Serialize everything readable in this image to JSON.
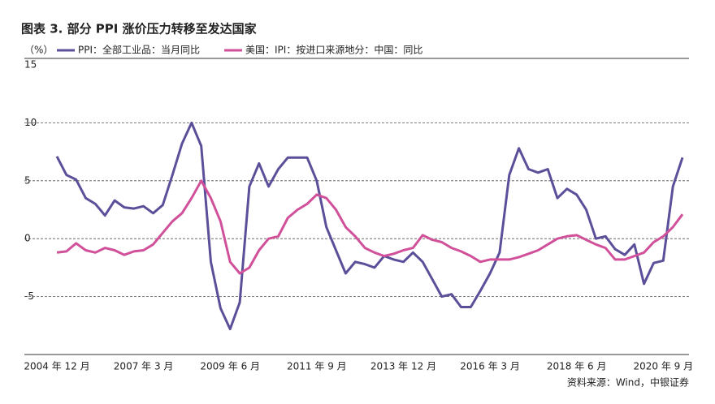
{
  "chart_data": {
    "type": "line",
    "title": "图表 3. 部分 PPI 涨价压力转移至发达国家",
    "y_label": "（%）",
    "source": "资料来源：Wind，中银证券",
    "categories": [
      "2004 年 12 月",
      null,
      null,
      null,
      null,
      null,
      null,
      null,
      null,
      "2007 年 3 月",
      null,
      null,
      null,
      null,
      null,
      null,
      null,
      null,
      "2009 年 6 月",
      null,
      null,
      null,
      null,
      null,
      null,
      null,
      null,
      "2011 年 9 月",
      null,
      null,
      null,
      null,
      null,
      null,
      null,
      null,
      "2013 年 12 月",
      null,
      null,
      null,
      null,
      null,
      null,
      null,
      null,
      "2016 年 3 月",
      null,
      null,
      null,
      null,
      null,
      null,
      null,
      null,
      "2018 年 6 月",
      null,
      null,
      null,
      null,
      null,
      null,
      null,
      null,
      "2020 年 9 月",
      null,
      null
    ],
    "series": [
      {
        "name": "PPI：全部工业品：当月同比",
        "color": "#5b4f9a",
        "values": [
          7.1,
          5.5,
          5.1,
          3.5,
          3.0,
          2.0,
          3.3,
          2.7,
          2.6,
          2.8,
          2.2,
          2.9,
          5.5,
          8.2,
          10.0,
          8.0,
          -2.0,
          -6.0,
          -7.8,
          -5.5,
          4.5,
          6.5,
          4.5,
          6.0,
          7.0,
          7.0,
          7.0,
          5.0,
          1.0,
          -1.0,
          -3.0,
          -2.0,
          -2.2,
          -2.5,
          -1.5,
          -1.8,
          -2.0,
          -1.2,
          -2.0,
          -3.5,
          -5.0,
          -4.8,
          -5.9,
          -5.9,
          -4.5,
          -3.0,
          -1.2,
          5.5,
          7.8,
          6.0,
          5.7,
          6.0,
          3.5,
          4.3,
          3.8,
          2.5,
          0.0,
          0.2,
          -0.9,
          -1.4,
          -0.5,
          -3.9,
          -2.1,
          -1.9,
          4.5,
          7.0
        ]
      },
      {
        "name": "美国：IPI：按进口来源地分：中国：同比",
        "color": "#d0509a",
        "values": [
          -1.2,
          -1.1,
          -0.4,
          -1.0,
          -1.2,
          -0.8,
          -1.0,
          -1.4,
          -1.1,
          -1.0,
          -0.5,
          0.5,
          1.5,
          2.2,
          3.5,
          5.0,
          3.5,
          1.5,
          -2.0,
          -3.0,
          -2.5,
          -1.0,
          0.0,
          0.2,
          1.8,
          2.5,
          3.0,
          3.8,
          3.5,
          2.5,
          1.0,
          0.2,
          -0.8,
          -1.2,
          -1.5,
          -1.3,
          -1.0,
          -0.8,
          0.3,
          -0.1,
          -0.3,
          -0.8,
          -1.1,
          -1.5,
          -2.0,
          -1.8,
          -1.8,
          -1.8,
          -1.6,
          -1.3,
          -1.0,
          -0.5,
          0.0,
          0.2,
          0.3,
          -0.1,
          -0.5,
          -0.8,
          -1.8,
          -1.8,
          -1.5,
          -1.2,
          -0.3,
          0.2,
          1.0,
          2.1
        ]
      }
    ],
    "ylim": [
      -10,
      15
    ],
    "yticks": [
      -5,
      0,
      5,
      10,
      15
    ],
    "grid": true
  }
}
